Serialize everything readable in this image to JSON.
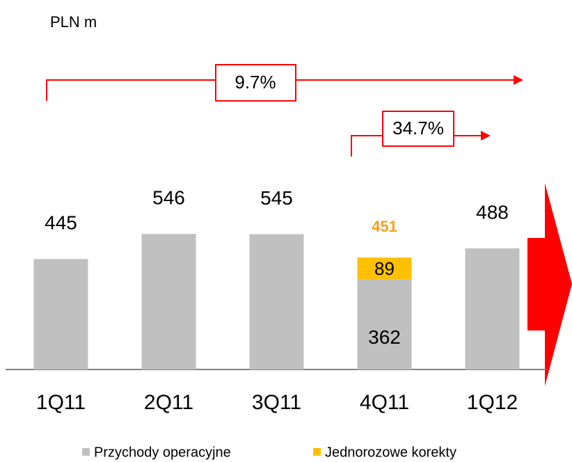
{
  "chart_data": {
    "type": "stacked_bar",
    "unit_label": "PLN m",
    "categories": [
      "1Q11",
      "2Q11",
      "3Q11",
      "4Q11",
      "1Q12"
    ],
    "series": [
      {
        "name": "Przychody operacyjne",
        "color": "#c0c0c0",
        "values": [
          445,
          546,
          545,
          362,
          488
        ]
      },
      {
        "name": "Jednorozowe korekty",
        "color": "#ffc000",
        "values": [
          null,
          null,
          null,
          89,
          null
        ]
      }
    ],
    "totals": [
      null,
      null,
      null,
      451,
      null
    ],
    "total_color": "#f4a21d",
    "annotations": [
      {
        "text": "9.7%"
      },
      {
        "text": "34.7%"
      }
    ],
    "ylim": [
      0,
      600
    ]
  }
}
